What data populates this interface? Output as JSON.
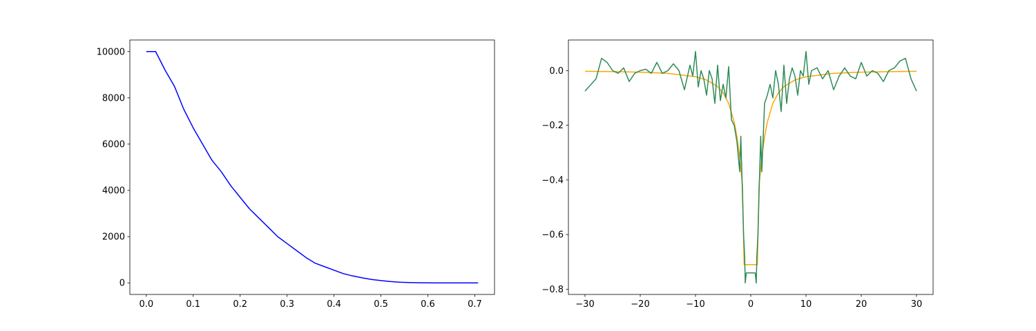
{
  "chart_data": [
    {
      "type": "line",
      "x": [
        0,
        0.02,
        0.04,
        0.06,
        0.08,
        0.1,
        0.12,
        0.14,
        0.16,
        0.18,
        0.2,
        0.22,
        0.24,
        0.26,
        0.28,
        0.3,
        0.32,
        0.34,
        0.36,
        0.38,
        0.4,
        0.42,
        0.44,
        0.46,
        0.48,
        0.5,
        0.52,
        0.54,
        0.56,
        0.58,
        0.6,
        0.62,
        0.64,
        0.66,
        0.68,
        0.7,
        0.707
      ],
      "series": [
        {
          "color": "#0000ff",
          "values": [
            10000,
            10000,
            9200,
            8500,
            7500,
            6700,
            6000,
            5300,
            4800,
            4200,
            3700,
            3200,
            2800,
            2400,
            2000,
            1700,
            1400,
            1100,
            850,
            700,
            550,
            400,
            300,
            220,
            150,
            100,
            60,
            30,
            15,
            8,
            3,
            1,
            0,
            0,
            0,
            0,
            0
          ]
        }
      ],
      "xlim": [
        -0.035,
        0.742
      ],
      "xticks": [
        {
          "value": 0,
          "label": "0.0"
        },
        0.1,
        0.2,
        0.3,
        0.4,
        0.5,
        0.6,
        0.7
      ],
      "ylim": [
        -500,
        10500
      ],
      "yticks": [
        0,
        2000,
        4000,
        6000,
        8000,
        10000
      ]
    },
    {
      "type": "line",
      "series": [
        {
          "color": "#ffa500",
          "x": [
            -30,
            -25,
            -20,
            -15,
            -10,
            -8,
            -6,
            -5,
            -4,
            -3,
            -2.5,
            -2,
            -1.5,
            -1.2,
            1.2,
            1.5,
            2,
            2.5,
            3,
            4,
            5,
            6,
            8,
            10,
            15,
            20,
            25,
            30
          ],
          "values": [
            -0.0025,
            -0.0037,
            -0.0057,
            -0.0101,
            -0.0223,
            -0.0342,
            -0.0587,
            -0.0814,
            -0.1195,
            -0.188,
            -0.242,
            -0.318,
            -0.419,
            -0.71,
            -0.71,
            -0.419,
            -0.318,
            -0.242,
            -0.188,
            -0.1195,
            -0.0814,
            -0.0587,
            -0.0342,
            -0.0223,
            -0.0101,
            -0.0057,
            -0.0037,
            -0.0025
          ]
        },
        {
          "color": "#2e8b57",
          "x": [
            -30,
            -28,
            -27,
            -26,
            -25,
            -24,
            -23,
            -22,
            -21,
            -20,
            -19,
            -18,
            -17,
            -16,
            -15,
            -14,
            -13,
            -12,
            -11,
            -10.5,
            -10,
            -9.5,
            -9,
            -8.5,
            -8,
            -7.5,
            -7,
            -6.5,
            -6,
            -5.5,
            -5,
            -4.5,
            -4,
            -3.5,
            -3,
            -2.5,
            -2,
            -1.8,
            -1.5,
            -1.3,
            -1.1,
            -1,
            -0.8,
            0.8,
            1,
            1.1,
            1.3,
            1.5,
            1.8,
            2,
            2.5,
            3,
            3.5,
            4,
            4.5,
            5,
            5.5,
            6,
            6.5,
            7,
            7.5,
            8,
            8.5,
            9,
            9.5,
            10,
            10.5,
            11,
            12,
            13,
            14,
            15,
            16,
            17,
            18,
            19,
            20,
            21,
            22,
            23,
            24,
            25,
            26,
            27,
            28,
            29,
            30
          ],
          "values": [
            -0.075,
            -0.03,
            0.045,
            0.03,
            0.0,
            -0.01,
            0.01,
            -0.04,
            -0.01,
            0.0,
            0.005,
            -0.01,
            0.03,
            -0.01,
            0.0,
            0.025,
            0.0,
            -0.07,
            0.02,
            -0.02,
            0.07,
            -0.06,
            0.0,
            -0.03,
            -0.09,
            0.0,
            -0.03,
            -0.12,
            0.02,
            -0.11,
            -0.05,
            -0.1,
            0.015,
            -0.18,
            -0.2,
            -0.26,
            -0.37,
            -0.24,
            -0.45,
            -0.6,
            -0.68,
            -0.777,
            -0.74,
            -0.74,
            -0.777,
            -0.68,
            -0.6,
            -0.45,
            -0.24,
            -0.37,
            -0.12,
            -0.09,
            -0.05,
            -0.1,
            0.0,
            -0.05,
            -0.15,
            0.02,
            -0.12,
            -0.03,
            0.01,
            -0.02,
            -0.09,
            0.0,
            -0.02,
            0.07,
            -0.05,
            0.0,
            0.01,
            -0.03,
            0.0,
            -0.07,
            -0.02,
            0.01,
            -0.02,
            -0.03,
            0.03,
            -0.02,
            0.0,
            -0.01,
            -0.04,
            0.0,
            0.01,
            0.035,
            0.045,
            -0.03,
            -0.075
          ]
        }
      ],
      "xlim": [
        -33,
        33
      ],
      "xticks": [
        {
          "value": -30,
          "label": "−30"
        },
        {
          "value": -20,
          "label": "−20"
        },
        {
          "value": -10,
          "label": "−10"
        },
        0,
        10,
        20,
        30
      ],
      "ylim": [
        -0.819,
        0.112
      ],
      "yticks": [
        {
          "value": -0.8,
          "label": "−0.8"
        },
        {
          "value": -0.6,
          "label": "−0.6"
        },
        {
          "value": -0.4,
          "label": "−0.4"
        },
        {
          "value": -0.2,
          "label": "−0.2"
        },
        {
          "value": 0,
          "label": "0.0"
        }
      ]
    }
  ]
}
